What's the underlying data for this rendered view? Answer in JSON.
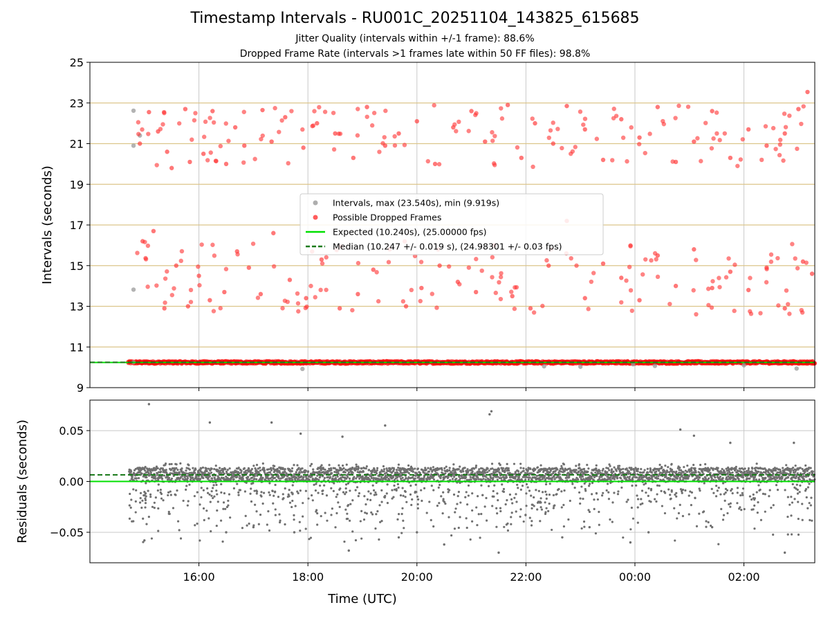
{
  "chart_data": [
    {
      "type": "scatter",
      "panel": "top",
      "title": "Timestamp Intervals - RU001C_20251104_143825_615685",
      "subtitles": [
        "Jitter Quality (intervals within +/-1 frame): 88.6%",
        "Dropped Frame Rate (intervals >1 frames late within 50 FF files): 98.8%"
      ],
      "xlabel": "",
      "ylabel": "Intervals (seconds)",
      "ylim": [
        9,
        25
      ],
      "xlim_hours": [
        14.0,
        27.3
      ],
      "yticks": [
        "9",
        "11",
        "13",
        "15",
        "17",
        "19",
        "21",
        "23",
        "25"
      ],
      "hlines_y": [
        11,
        13,
        15,
        17,
        19,
        21,
        23
      ],
      "grid_x": true,
      "legend_position": "center",
      "legend": [
        {
          "label": "Intervals, max (23.540s), min (9.919s)",
          "marker": "point",
          "color": "#a0a0a0"
        },
        {
          "label": "Possible Dropped Frames",
          "marker": "point",
          "color": "#ff4040"
        },
        {
          "label": "Expected (10.240s), (25.00000 fps)",
          "marker": "solid-line",
          "color": "#00e000"
        },
        {
          "label": "Median (10.247 +/- 0.019 s), (24.98301 +/- 0.03 fps)",
          "marker": "dashed-line",
          "color": "#1a7a1a"
        }
      ],
      "series": [
        {
          "name": "Intervals, max (23.540s), min (9.919s)",
          "color": "#999999",
          "x": [
            "14:48",
            "14:48",
            "14:55",
            "14:48",
            "14:48",
            "17:54",
            "22:20",
            "23:00",
            "23:58",
            "00:22",
            "02:00",
            "02:58"
          ],
          "y": [
            22.62,
            20.9,
            21.4,
            13.82,
            10.25,
            9.92,
            10.05,
            10.03,
            10.15,
            10.07,
            10.1,
            9.94
          ]
        },
        {
          "name": "Possible Dropped Frames",
          "color": "#ff3030",
          "x": [
            "14:55",
            "15:05",
            "15:15",
            "15:25",
            "15:30",
            "15:45",
            "15:50",
            "16:05",
            "16:15",
            "16:30",
            "16:40",
            "16:50",
            "17:10",
            "17:20",
            "17:35",
            "17:55",
            "18:10",
            "18:30",
            "18:50",
            "19:05",
            "19:25",
            "19:40",
            "20:00",
            "20:20",
            "20:40",
            "21:00",
            "21:15",
            "21:40",
            "21:55",
            "22:10",
            "22:30",
            "22:45",
            "23:05",
            "23:25",
            "23:45",
            "00:05",
            "00:25",
            "00:45",
            "01:05",
            "01:25",
            "01:45",
            "02:05",
            "02:25",
            "02:45",
            "03:00",
            "03:10",
            "14:58",
            "15:10",
            "15:22",
            "15:35",
            "15:48",
            "16:00",
            "16:12",
            "16:28",
            "16:42",
            "16:55",
            "17:08",
            "17:22",
            "17:40",
            "17:58",
            "18:15",
            "18:35",
            "18:55",
            "19:12",
            "19:30",
            "19:48",
            "20:05",
            "20:25",
            "20:45",
            "21:05",
            "21:25",
            "21:45",
            "22:05",
            "22:25",
            "22:45",
            "23:05",
            "23:25",
            "23:45",
            "00:05",
            "00:25",
            "00:45",
            "01:05",
            "01:25",
            "01:45",
            "02:05",
            "02:25",
            "02:45",
            "03:05",
            "03:15"
          ],
          "y": [
            21.0,
            22.55,
            21.6,
            20.6,
            19.8,
            22.7,
            20.1,
            20.5,
            22.6,
            20.0,
            21.8,
            20.9,
            22.65,
            21.1,
            22.3,
            20.8,
            22.0,
            21.5,
            20.3,
            22.8,
            20.9,
            21.5,
            22.1,
            20.0,
            21.8,
            22.6,
            21.1,
            22.9,
            20.3,
            22.0,
            21.0,
            22.85,
            21.7,
            20.2,
            22.2,
            21.3,
            22.8,
            20.1,
            21.1,
            22.6,
            20.3,
            21.7,
            20.9,
            21.5,
            22.7,
            23.54,
            16.2,
            16.7,
            12.9,
            15.0,
            13.0,
            14.5,
            13.3,
            13.7,
            15.7,
            14.9,
            13.6,
            16.6,
            14.3,
            13.4,
            15.3,
            12.9,
            13.6,
            14.8,
            15.8,
            13.0,
            13.9,
            15.0,
            14.2,
            13.7,
            16.0,
            13.5,
            12.9,
            15.0,
            17.2,
            13.4,
            15.1,
            14.4,
            13.3,
            15.5,
            14.0,
            15.8,
            13.9,
            14.7,
            13.8,
            14.9,
            12.9,
            15.2,
            14.6
          ]
        },
        {
          "name": "Expected (10.240s), (25.00000 fps)",
          "color": "#00e000",
          "y": 10.24
        },
        {
          "name": "Median (10.247 +/- 0.019 s), (24.98301 +/- 0.03 fps)",
          "color": "#1a7a1a",
          "y": 10.247
        }
      ]
    },
    {
      "type": "scatter",
      "panel": "bottom",
      "xlabel": "Time (UTC)",
      "ylabel": "Residuals (seconds)",
      "ylim": [
        -0.08,
        0.08
      ],
      "yticks": [
        "−0.05",
        "0.00",
        "0.05"
      ],
      "ytick_values": [
        -0.05,
        0.0,
        0.05
      ],
      "xticks": [
        "16:00",
        "18:00",
        "20:00",
        "22:00",
        "00:00",
        "02:00"
      ],
      "xtick_hours": [
        16,
        18,
        20,
        22,
        24,
        26
      ],
      "grid": true,
      "series": [
        {
          "name": "Residuals",
          "color": "#707070",
          "x": [
            "15:05",
            "16:12",
            "17:20",
            "17:52",
            "18:38",
            "19:25",
            "21:20",
            "21:22",
            "00:50",
            "01:05",
            "01:45",
            "02:55",
            "15:00",
            "16:30",
            "17:00",
            "17:45",
            "18:45",
            "19:40",
            "20:00",
            "20:30",
            "21:30",
            "22:40",
            "23:10",
            "23:55",
            "00:15",
            "01:25",
            "02:45"
          ],
          "y": [
            0.076,
            0.058,
            0.058,
            0.047,
            0.044,
            0.055,
            0.066,
            0.069,
            0.051,
            0.045,
            0.038,
            0.038,
            -0.058,
            -0.05,
            -0.045,
            -0.05,
            -0.068,
            -0.055,
            -0.05,
            -0.062,
            -0.07,
            -0.055,
            -0.045,
            -0.06,
            -0.05,
            -0.045,
            -0.07
          ]
        },
        {
          "name": "Expected",
          "color": "#00e000",
          "y": 0.0
        },
        {
          "name": "Median",
          "color": "#1a7a1a",
          "y": 0.0065
        }
      ]
    }
  ]
}
